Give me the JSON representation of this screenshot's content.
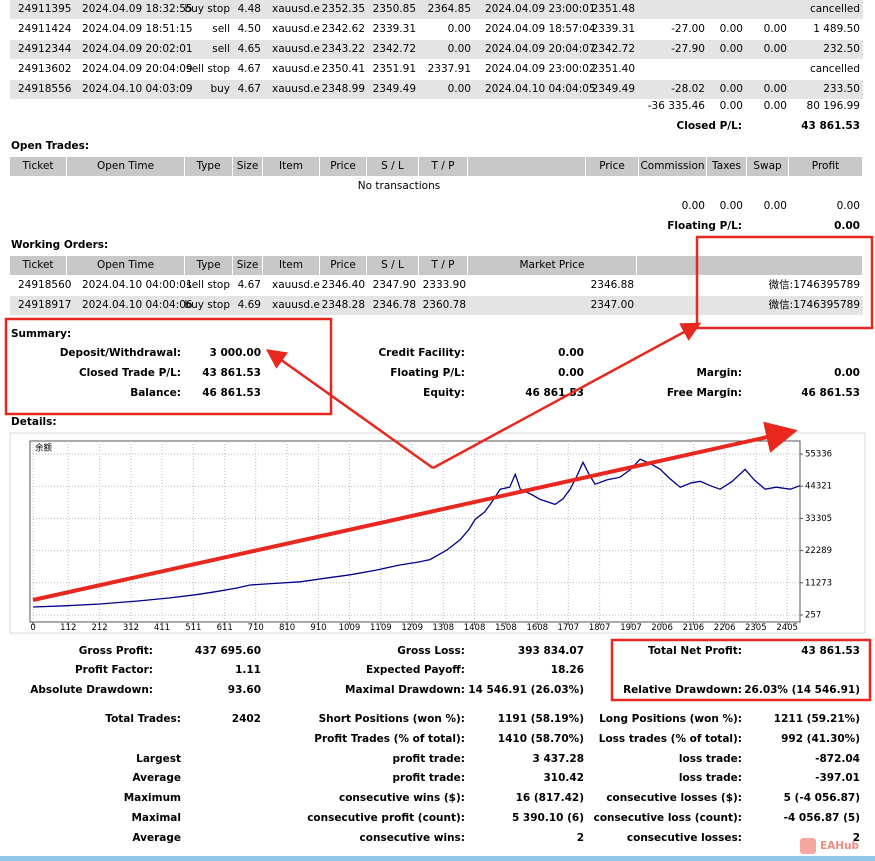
{
  "closed_trades": {
    "rows": [
      [
        "24911395",
        "2024.04.09 18:32:55",
        "buy stop",
        "4.48",
        "xauusd.e",
        "2352.35",
        "2350.85",
        "2364.85",
        "2024.04.09 23:00:01",
        "2351.48",
        null,
        null,
        null,
        "cancelled"
      ],
      [
        "24911424",
        "2024.04.09 18:51:15",
        "sell",
        "4.50",
        "xauusd.e",
        "2342.62",
        "2339.31",
        "0.00",
        "2024.04.09 18:57:04",
        "2339.31",
        "-27.00",
        "0.00",
        "0.00",
        "1 489.50"
      ],
      [
        "24912344",
        "2024.04.09 20:02:01",
        "sell",
        "4.65",
        "xauusd.e",
        "2343.22",
        "2342.72",
        "0.00",
        "2024.04.09 20:04:07",
        "2342.72",
        "-27.90",
        "0.00",
        "0.00",
        "232.50"
      ],
      [
        "24913602",
        "2024.04.09 20:04:09",
        "sell stop",
        "4.67",
        "xauusd.e",
        "2350.41",
        "2351.91",
        "2337.91",
        "2024.04.09 23:00:02",
        "2351.40",
        null,
        null,
        null,
        "cancelled"
      ],
      [
        "24918556",
        "2024.04.10 04:03:09",
        "buy",
        "4.67",
        "xauusd.e",
        "2348.99",
        "2349.49",
        "0.00",
        "2024.04.10 04:04:05",
        "2349.49",
        "-28.02",
        "0.00",
        "0.00",
        "233.50"
      ]
    ],
    "totals": [
      "-36 335.46",
      "0.00",
      "0.00",
      "80 196.99"
    ],
    "pl_label": "Closed P/L:",
    "pl_value": "43 861.53"
  },
  "open_trades": {
    "title": "Open Trades:",
    "header": [
      "Ticket",
      "Open Time",
      "Type",
      "Size",
      "Item",
      "Price",
      "S / L",
      "T / P",
      "Price",
      "Commission",
      "Taxes",
      "Swap",
      "Profit"
    ],
    "empty": "No transactions",
    "totals": [
      "0.00",
      "0.00",
      "0.00",
      "0.00"
    ],
    "pl_label": "Floating P/L:",
    "pl_value": "0.00"
  },
  "working_orders": {
    "title": "Working Orders:",
    "header": [
      "Ticket",
      "Open Time",
      "Type",
      "Size",
      "Item",
      "Price",
      "S / L",
      "T / P",
      "Market Price"
    ],
    "rows": [
      [
        "24918560",
        "2024.04.10 04:00:01",
        "sell stop",
        "4.67",
        "xauusd.e",
        "2346.40",
        "2347.90",
        "2333.90",
        "2346.88",
        "微信:1746395789"
      ],
      [
        "24918917",
        "2024.04.10 04:04:06",
        "buy stop",
        "4.69",
        "xauusd.e",
        "2348.28",
        "2346.78",
        "2360.78",
        "2347.00",
        "微信:1746395789"
      ]
    ]
  },
  "summary": {
    "title": "Summary:",
    "rows": [
      [
        "Deposit/Withdrawal:",
        "3 000.00",
        "Credit Facility:",
        "0.00",
        null,
        null
      ],
      [
        "Closed Trade P/L:",
        "43 861.53",
        "Floating P/L:",
        "0.00",
        "Margin:",
        "0.00"
      ],
      [
        "Balance:",
        "46 861.53",
        "Equity:",
        "46 861.53",
        "Free Margin:",
        "46 861.53"
      ]
    ]
  },
  "details": {
    "title": "Details:",
    "rows": [
      [
        "Gross Profit:",
        "437 695.60",
        "Gross Loss:",
        "393 834.07",
        "Total Net Profit:",
        "43 861.53"
      ],
      [
        "Profit Factor:",
        "1.11",
        "Expected Payoff:",
        "18.26",
        null,
        null
      ],
      [
        "Absolute Drawdown:",
        "93.60",
        "Maximal Drawdown:",
        "14 546.91 (26.03%)",
        "Relative Drawdown:",
        "26.03% (14 546.91)"
      ],
      [
        "Total Trades:",
        "2402",
        "Short Positions (won %):",
        "1191 (58.19%)",
        "Long Positions (won %):",
        "1211 (59.21%)"
      ],
      [
        null,
        null,
        "Profit Trades (% of total):",
        "1410 (58.70%)",
        "Loss trades (% of total):",
        "992 (41.30%)"
      ],
      [
        "Largest",
        null,
        "profit trade:",
        "3 437.28",
        "loss trade:",
        "-872.04"
      ],
      [
        "Average",
        null,
        "profit trade:",
        "310.42",
        "loss trade:",
        "-397.01"
      ],
      [
        "Maximum",
        null,
        "consecutive wins ($):",
        "16 (817.42)",
        "consecutive losses ($):",
        "5 (-4 056.87)"
      ],
      [
        "Maximal",
        null,
        "consecutive profit (count):",
        "5 390.10 (6)",
        "consecutive loss (count):",
        "-4 056.87 (5)"
      ],
      [
        "Average",
        null,
        "consecutive wins:",
        "2",
        "consecutive losses:",
        "2"
      ]
    ]
  },
  "watermark": "EAHub",
  "chart_data": {
    "type": "line",
    "title": "余额",
    "x": [
      0,
      100,
      214,
      330,
      437,
      520,
      580,
      650,
      692,
      760,
      852,
      930,
      1011,
      1090,
      1171,
      1230,
      1266,
      1320,
      1362,
      1390,
      1410,
      1440,
      1458,
      1490,
      1520,
      1538,
      1554,
      1590,
      1617,
      1665,
      1690,
      1713,
      1735,
      1754,
      1770,
      1792,
      1830,
      1872,
      1905,
      1936,
      1970,
      2000,
      2030,
      2064,
      2100,
      2128,
      2160,
      2191,
      2230,
      2271,
      2300,
      2335,
      2370,
      2415,
      2446
    ],
    "values": [
      3000,
      3400,
      4000,
      5000,
      6100,
      7200,
      8200,
      9500,
      10500,
      11000,
      11600,
      12800,
      14000,
      15500,
      17400,
      18400,
      19200,
      22500,
      26000,
      29500,
      33000,
      35500,
      38100,
      43300,
      44000,
      48400,
      43300,
      41500,
      39800,
      38100,
      40000,
      43300,
      48000,
      52500,
      49000,
      45000,
      46500,
      47400,
      50000,
      53600,
      52000,
      50100,
      47000,
      44000,
      45500,
      46000,
      44500,
      43300,
      46000,
      50100,
      46500,
      43300,
      44000,
      43300,
      44500
    ],
    "xlim": [
      -10,
      2446
    ],
    "ylim": [
      -2150,
      59800
    ],
    "xticks": [
      0,
      112,
      212,
      312,
      411,
      511,
      611,
      710,
      810,
      910,
      1009,
      1109,
      1209,
      1308,
      1408,
      1508,
      1608,
      1707,
      1807,
      1907,
      2006,
      2106,
      2206,
      2305,
      2405
    ],
    "yticks": [
      257,
      11273,
      22289,
      33305,
      44321,
      55336
    ],
    "color": "#00008b",
    "grid": true
  }
}
